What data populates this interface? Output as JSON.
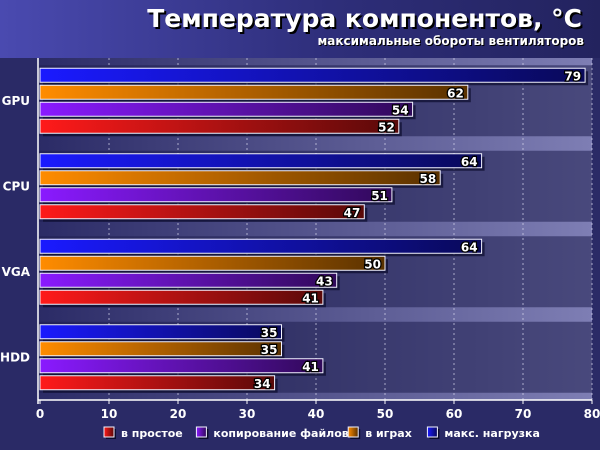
{
  "header": {
    "title": "Температура компонентов, °С",
    "subtitle": "максимальные обороты вентиляторов"
  },
  "chart_data": {
    "type": "bar",
    "orientation": "horizontal",
    "title": "Температура компонентов, °С",
    "subtitle": "максимальные обороты вентиляторов",
    "categories": [
      "GPU",
      "CPU",
      "VGA",
      "HDD"
    ],
    "series": [
      {
        "name": "макс. нагрузка",
        "color": "#1a1aff",
        "values": [
          79,
          64,
          64,
          35
        ]
      },
      {
        "name": "в играх",
        "color": "#ff8c00",
        "values": [
          62,
          58,
          50,
          35
        ]
      },
      {
        "name": "копирование файлов",
        "color": "#8a1aff",
        "values": [
          54,
          51,
          43,
          41
        ]
      },
      {
        "name": "в простое",
        "color": "#ff1a1a",
        "values": [
          52,
          47,
          41,
          34
        ]
      }
    ],
    "legend_order": [
      "в простое",
      "копирование файлов",
      "в играх",
      "макс. нагрузка"
    ],
    "xlim": [
      0,
      80
    ],
    "xticks": [
      0,
      10,
      20,
      30,
      40,
      50,
      60,
      70,
      80
    ],
    "grid": true,
    "legend_position": "bottom-right",
    "data_labels": true
  }
}
